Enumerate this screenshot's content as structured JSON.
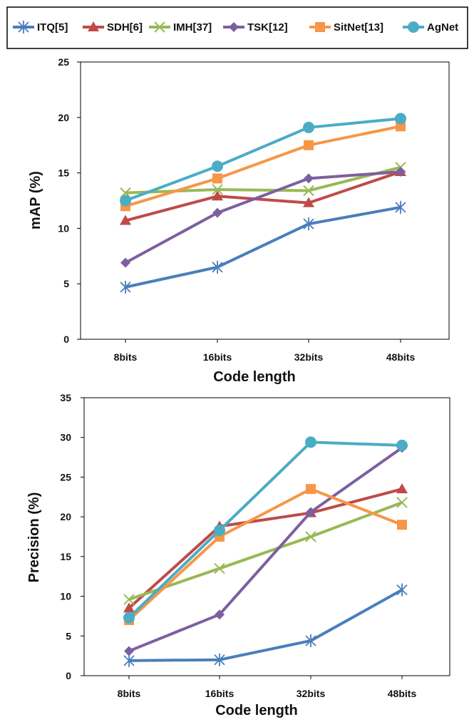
{
  "legend": {
    "entries": [
      {
        "label": "ITQ[5]",
        "color": "#4a7ebb",
        "marker": "asterisk"
      },
      {
        "label": "SDH[6]",
        "color": "#be4b48",
        "marker": "triangle"
      },
      {
        "label": "IMH[37]",
        "color": "#98b954",
        "marker": "x"
      },
      {
        "label": "TSK[12]",
        "color": "#7d5fa0",
        "marker": "diamond"
      },
      {
        "label": "SitNet[13]",
        "color": "#f79646",
        "marker": "square"
      },
      {
        "label": "AgNet",
        "color": "#4bacc6",
        "marker": "circle"
      }
    ]
  },
  "chart_data": [
    {
      "type": "line",
      "xlabel": "Code length",
      "ylabel": "mAP  (%)",
      "categories": [
        "8bits",
        "16bits",
        "32bits",
        "48bits"
      ],
      "ylim": [
        0,
        25
      ],
      "yticks": [
        "0",
        "5",
        "10",
        "15",
        "20",
        "25"
      ],
      "series": [
        {
          "name": "ITQ[5]",
          "values": [
            4.7,
            6.5,
            10.4,
            11.9
          ]
        },
        {
          "name": "SDH[6]",
          "values": [
            10.7,
            12.9,
            12.3,
            15.1
          ]
        },
        {
          "name": "IMH[37]",
          "values": [
            13.2,
            13.5,
            13.4,
            15.5
          ]
        },
        {
          "name": "TSK[12]",
          "values": [
            6.9,
            11.4,
            14.5,
            15.1
          ]
        },
        {
          "name": "SitNet[13]",
          "values": [
            12.0,
            14.5,
            17.5,
            19.2
          ]
        },
        {
          "name": "AgNet",
          "values": [
            12.5,
            15.6,
            19.1,
            19.9
          ]
        }
      ]
    },
    {
      "type": "line",
      "xlabel": "Code length",
      "ylabel": "Precision (%)",
      "categories": [
        "8bits",
        "16bits",
        "32bits",
        "48bits"
      ],
      "ylim": [
        0,
        35
      ],
      "yticks": [
        "0",
        "5",
        "10",
        "15",
        "20",
        "25",
        "30",
        "35"
      ],
      "series": [
        {
          "name": "ITQ[5]",
          "values": [
            1.9,
            2.0,
            4.4,
            10.8
          ]
        },
        {
          "name": "SDH[6]",
          "values": [
            8.5,
            18.8,
            20.5,
            23.5
          ]
        },
        {
          "name": "IMH[37]",
          "values": [
            9.6,
            13.5,
            17.5,
            21.8
          ]
        },
        {
          "name": "TSK[12]",
          "values": [
            3.1,
            7.7,
            20.6,
            28.7
          ]
        },
        {
          "name": "SitNet[13]",
          "values": [
            7.0,
            17.5,
            23.5,
            19.0
          ]
        },
        {
          "name": "AgNet",
          "values": [
            7.3,
            18.3,
            29.4,
            29.0
          ]
        }
      ]
    }
  ]
}
